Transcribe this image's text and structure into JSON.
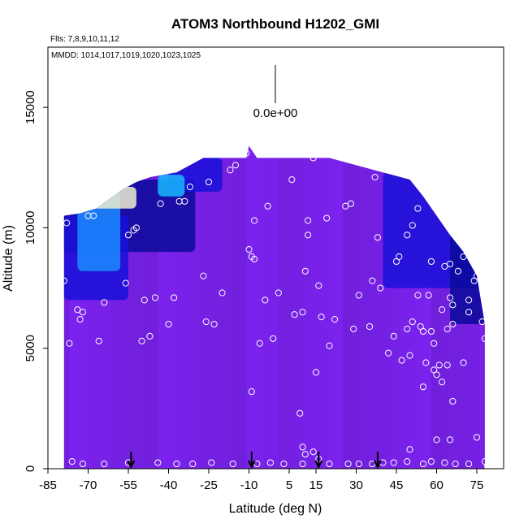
{
  "chart_data": {
    "type": "heatmap",
    "title": "ATOM3 Northbound H1202_GMI",
    "subtitle_flights": "Flts: 7,8,9,10,11,12",
    "subtitle_dates": "MMDD: 1014,1017,1019,1020,1023,1025",
    "xlabel": "Latitude (deg N)",
    "ylabel": "Altitude (m)",
    "xlim": [
      -85,
      85
    ],
    "ylim": [
      0,
      17500
    ],
    "x_ticks": [
      -85,
      -70,
      -55,
      -40,
      -25,
      -10,
      5,
      15,
      30,
      45,
      60,
      75
    ],
    "y_ticks": [
      0,
      5000,
      10000,
      15000
    ],
    "legend_value_label": "0.0e+00",
    "grid": false,
    "base_color": "#7b22ee",
    "colors": {
      "background_field": "#7b22ee",
      "dark_band": "#1a10d8",
      "navy": "#0a0a9a",
      "sky_blue": "#1aa8ff",
      "light": "#f0f0d0",
      "marker": "#ffffff",
      "arrow": "#000000"
    },
    "ceiling_profile": {
      "lat": [
        -79,
        -73,
        -67,
        -62,
        -57,
        -52,
        -47,
        -42,
        -37,
        -32,
        -27,
        -22,
        -17,
        -11,
        -10,
        -7,
        0,
        10,
        20,
        30,
        40,
        50,
        55,
        60,
        65,
        70,
        75,
        78
      ],
      "alt": [
        10500,
        10600,
        10800,
        11200,
        11600,
        11900,
        12100,
        12200,
        12300,
        12600,
        12900,
        12900,
        12900,
        12900,
        13400,
        12900,
        12900,
        12900,
        12900,
        12600,
        12300,
        12000,
        11300,
        10500,
        9700,
        9000,
        8000,
        6000
      ]
    },
    "arrows_lat": [
      -54,
      -9,
      16,
      38
    ],
    "samples": [
      {
        "lat": -79,
        "alt": 7800
      },
      {
        "lat": -78,
        "alt": 10200
      },
      {
        "lat": -77,
        "alt": 5200
      },
      {
        "lat": -74,
        "alt": 6600
      },
      {
        "lat": -73,
        "alt": 6200
      },
      {
        "lat": -72,
        "alt": 6500
      },
      {
        "lat": -70,
        "alt": 10500
      },
      {
        "lat": -68,
        "alt": 10500
      },
      {
        "lat": -66,
        "alt": 5300
      },
      {
        "lat": -64,
        "alt": 6900
      },
      {
        "lat": -56,
        "alt": 7700
      },
      {
        "lat": -55,
        "alt": 9700
      },
      {
        "lat": -53,
        "alt": 9900
      },
      {
        "lat": -52,
        "alt": 10000
      },
      {
        "lat": -50,
        "alt": 5300
      },
      {
        "lat": -49,
        "alt": 7000
      },
      {
        "lat": -47,
        "alt": 5500
      },
      {
        "lat": -45,
        "alt": 7100
      },
      {
        "lat": -43,
        "alt": 11000
      },
      {
        "lat": -40,
        "alt": 6000
      },
      {
        "lat": -38,
        "alt": 7100
      },
      {
        "lat": -36,
        "alt": 11100
      },
      {
        "lat": -34,
        "alt": 11100
      },
      {
        "lat": -32,
        "alt": 11700
      },
      {
        "lat": -27,
        "alt": 8000
      },
      {
        "lat": -26,
        "alt": 6100
      },
      {
        "lat": -25,
        "alt": 11900
      },
      {
        "lat": -23,
        "alt": 6000
      },
      {
        "lat": -20,
        "alt": 7300
      },
      {
        "lat": -17,
        "alt": 12400
      },
      {
        "lat": -15,
        "alt": 12600
      },
      {
        "lat": -11,
        "alt": 13100
      },
      {
        "lat": -10,
        "alt": 9100
      },
      {
        "lat": -9,
        "alt": 8800
      },
      {
        "lat": -8,
        "alt": 8700
      },
      {
        "lat": -8,
        "alt": 10300
      },
      {
        "lat": -9,
        "alt": 3200
      },
      {
        "lat": -6,
        "alt": 5200
      },
      {
        "lat": -4,
        "alt": 7000
      },
      {
        "lat": -3,
        "alt": 10900
      },
      {
        "lat": -1,
        "alt": 5400
      },
      {
        "lat": 1,
        "alt": 7300
      },
      {
        "lat": 6,
        "alt": 12000
      },
      {
        "lat": 7,
        "alt": 6400
      },
      {
        "lat": 9,
        "alt": 2300
      },
      {
        "lat": 10,
        "alt": 6500
      },
      {
        "lat": 11,
        "alt": 8200
      },
      {
        "lat": 12,
        "alt": 9700
      },
      {
        "lat": 12,
        "alt": 10300
      },
      {
        "lat": 14,
        "alt": 12900
      },
      {
        "lat": 15,
        "alt": 4000
      },
      {
        "lat": 16,
        "alt": 7600
      },
      {
        "lat": 17,
        "alt": 6300
      },
      {
        "lat": 19,
        "alt": 10400
      },
      {
        "lat": 20,
        "alt": 5100
      },
      {
        "lat": 22,
        "alt": 6200
      },
      {
        "lat": 26,
        "alt": 10900
      },
      {
        "lat": 28,
        "alt": 11000
      },
      {
        "lat": 29,
        "alt": 5800
      },
      {
        "lat": 31,
        "alt": 7200
      },
      {
        "lat": 35,
        "alt": 5900
      },
      {
        "lat": 36,
        "alt": 7800
      },
      {
        "lat": 37,
        "alt": 12100
      },
      {
        "lat": 38,
        "alt": 9600
      },
      {
        "lat": 39,
        "alt": 7500
      },
      {
        "lat": 42,
        "alt": 4800
      },
      {
        "lat": 44,
        "alt": 5500
      },
      {
        "lat": 45,
        "alt": 8600
      },
      {
        "lat": 46,
        "alt": 8800
      },
      {
        "lat": 47,
        "alt": 4500
      },
      {
        "lat": 49,
        "alt": 5800
      },
      {
        "lat": 49,
        "alt": 9700
      },
      {
        "lat": 50,
        "alt": 4700
      },
      {
        "lat": 51,
        "alt": 6100
      },
      {
        "lat": 51,
        "alt": 10100
      },
      {
        "lat": 52,
        "alt": 12000
      },
      {
        "lat": 53,
        "alt": 10800
      },
      {
        "lat": 53,
        "alt": 7200
      },
      {
        "lat": 54,
        "alt": 5900
      },
      {
        "lat": 55,
        "alt": 5700
      },
      {
        "lat": 55,
        "alt": 3400
      },
      {
        "lat": 56,
        "alt": 4400
      },
      {
        "lat": 57,
        "alt": 7200
      },
      {
        "lat": 58,
        "alt": 5700
      },
      {
        "lat": 58,
        "alt": 8600
      },
      {
        "lat": 59,
        "alt": 4100
      },
      {
        "lat": 59,
        "alt": 5200
      },
      {
        "lat": 60,
        "alt": 3900
      },
      {
        "lat": 61,
        "alt": 4300
      },
      {
        "lat": 62,
        "alt": 6600
      },
      {
        "lat": 62,
        "alt": 3600
      },
      {
        "lat": 63,
        "alt": 8400
      },
      {
        "lat": 64,
        "alt": 5800
      },
      {
        "lat": 64,
        "alt": 4300
      },
      {
        "lat": 65,
        "alt": 8500
      },
      {
        "lat": 65,
        "alt": 7100
      },
      {
        "lat": 66,
        "alt": 6000
      },
      {
        "lat": 66,
        "alt": 2800
      },
      {
        "lat": 66,
        "alt": 6800
      },
      {
        "lat": 68,
        "alt": 8200
      },
      {
        "lat": 70,
        "alt": 8800
      },
      {
        "lat": 70,
        "alt": 4400
      },
      {
        "lat": 72,
        "alt": 7000
      },
      {
        "lat": 72,
        "alt": 6500
      },
      {
        "lat": 74,
        "alt": 7800
      },
      {
        "lat": 75,
        "alt": 8000
      },
      {
        "lat": 76,
        "alt": 9000
      },
      {
        "lat": 77,
        "alt": 6100
      },
      {
        "lat": 78,
        "alt": 5400
      },
      {
        "lat": -76,
        "alt": 300
      },
      {
        "lat": -72,
        "alt": 200
      },
      {
        "lat": -64,
        "alt": 200
      },
      {
        "lat": -55,
        "alt": 250
      },
      {
        "lat": -44,
        "alt": 250
      },
      {
        "lat": -37,
        "alt": 200
      },
      {
        "lat": -31,
        "alt": 200
      },
      {
        "lat": -24,
        "alt": 250
      },
      {
        "lat": -16,
        "alt": 200
      },
      {
        "lat": -7,
        "alt": 200
      },
      {
        "lat": -2,
        "alt": 250
      },
      {
        "lat": 3,
        "alt": 200
      },
      {
        "lat": 10,
        "alt": 200
      },
      {
        "lat": 10,
        "alt": 900
      },
      {
        "lat": 11,
        "alt": 600
      },
      {
        "lat": 14,
        "alt": 700
      },
      {
        "lat": 16,
        "alt": 400
      },
      {
        "lat": 20,
        "alt": 200
      },
      {
        "lat": 27,
        "alt": 200
      },
      {
        "lat": 31,
        "alt": 200
      },
      {
        "lat": 36,
        "alt": 200
      },
      {
        "lat": 40,
        "alt": 250
      },
      {
        "lat": 44,
        "alt": 250
      },
      {
        "lat": 49,
        "alt": 300
      },
      {
        "lat": 50,
        "alt": 800
      },
      {
        "lat": 55,
        "alt": 200
      },
      {
        "lat": 58,
        "alt": 300
      },
      {
        "lat": 60,
        "alt": 1200
      },
      {
        "lat": 63,
        "alt": 250
      },
      {
        "lat": 65,
        "alt": 1200
      },
      {
        "lat": 67,
        "alt": 200
      },
      {
        "lat": 72,
        "alt": 200
      },
      {
        "lat": 75,
        "alt": 1300
      },
      {
        "lat": 78,
        "alt": 300
      },
      {
        "lat": 79,
        "alt": 100
      }
    ],
    "anomalies": [
      {
        "name": "southern-upper-layer",
        "lat": [
          -79,
          -30
        ],
        "alt": [
          9000,
          12000
        ],
        "color": "#0a0a9a"
      },
      {
        "name": "southern-low-band",
        "lat": [
          -79,
          -55
        ],
        "alt": [
          7000,
          10500
        ],
        "color": "#1a10d8"
      },
      {
        "name": "southern-blue-plume",
        "lat": [
          -74,
          -58
        ],
        "alt": [
          8200,
          11500
        ],
        "color": "#1a8cff"
      },
      {
        "name": "southern-light-core",
        "lat": [
          -70,
          -52
        ],
        "alt": [
          10800,
          11700
        ],
        "color": "#f0f0d0"
      },
      {
        "name": "southern-top-cap",
        "lat": [
          -40,
          -20
        ],
        "alt": [
          11500,
          12900
        ],
        "color": "#1a10d8"
      },
      {
        "name": "southern-cyan-tip",
        "lat": [
          -44,
          -34
        ],
        "alt": [
          11300,
          12200
        ],
        "color": "#18b8ff"
      },
      {
        "name": "northern-upper-layer",
        "lat": [
          40,
          78
        ],
        "alt": [
          7500,
          12300
        ],
        "color": "#1a10d8"
      },
      {
        "name": "northern-edge",
        "lat": [
          65,
          78
        ],
        "alt": [
          6000,
          9800
        ],
        "color": "#0a0a9a"
      }
    ]
  }
}
